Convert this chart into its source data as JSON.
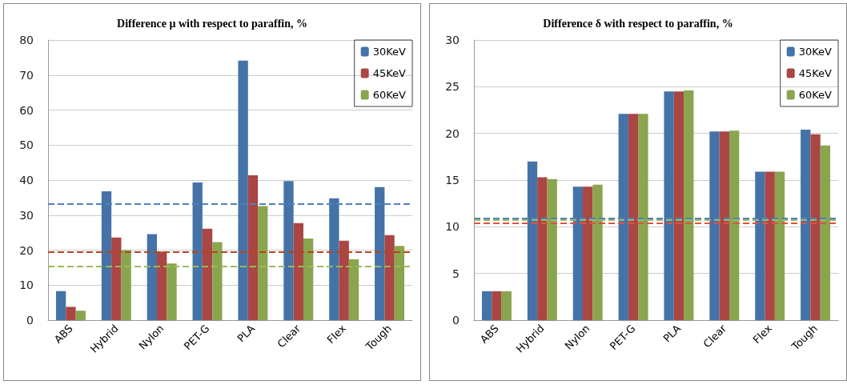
{
  "chart_data": [
    {
      "type": "bar",
      "title": "Difference μ with respect to paraffin, %",
      "categories": [
        "ABS",
        "Hybrid",
        "Nylon",
        "PET-G",
        "PLA",
        "Clear",
        "Flex",
        "Tough"
      ],
      "series": [
        {
          "name": "30KeV",
          "color": "#4572a7",
          "values": [
            8.3,
            36.8,
            24.6,
            39.3,
            74.1,
            39.7,
            34.8,
            38.0
          ]
        },
        {
          "name": "45KeV",
          "color": "#aa4643",
          "values": [
            3.8,
            23.6,
            19.6,
            26.1,
            41.4,
            27.7,
            22.7,
            24.3
          ]
        },
        {
          "name": "60KeV",
          "color": "#89a54e",
          "values": [
            2.7,
            20.0,
            16.2,
            22.3,
            32.6,
            23.3,
            17.4,
            21.2
          ]
        }
      ],
      "ylim": [
        0,
        80
      ],
      "yticks": [
        0,
        10,
        20,
        30,
        40,
        50,
        60,
        70,
        80
      ],
      "grid": "y",
      "legend": "top right",
      "ref_lines": [
        {
          "axis": "y",
          "value": 33.3,
          "color": "#4f81bd",
          "line_style": "dashed"
        },
        {
          "axis": "y",
          "value": 19.4,
          "color": "#b5451b",
          "line_style": "dashed"
        },
        {
          "axis": "y",
          "value": 15.3,
          "color": "#9bbb59",
          "line_style": "dashed"
        }
      ]
    },
    {
      "type": "bar",
      "title": "Difference δ with respect to paraffin, %",
      "categories": [
        "ABS",
        "Hybrid",
        "Nylon",
        "PET-G",
        "PLA",
        "Clear",
        "Flex",
        "Tough"
      ],
      "series": [
        {
          "name": "30KeV",
          "color": "#4572a7",
          "values": [
            3.1,
            17.0,
            14.3,
            22.1,
            24.5,
            20.2,
            15.9,
            20.4
          ]
        },
        {
          "name": "45KeV",
          "color": "#aa4643",
          "values": [
            3.1,
            15.3,
            14.3,
            22.1,
            24.5,
            20.2,
            15.9,
            19.9
          ]
        },
        {
          "name": "60KeV",
          "color": "#89a54e",
          "values": [
            3.1,
            15.1,
            14.5,
            22.1,
            24.6,
            20.3,
            15.9,
            18.7
          ]
        }
      ],
      "ylim": [
        0,
        30
      ],
      "yticks": [
        0,
        5,
        10,
        15,
        20,
        25,
        30
      ],
      "grid": "y",
      "legend": "top right",
      "ref_lines": [
        {
          "axis": "y",
          "value": 10.9,
          "color": "#4f81bd",
          "line_style": "dashed"
        },
        {
          "axis": "y",
          "value": 10.4,
          "color": "#e0504d",
          "line_style": "dashed"
        },
        {
          "axis": "y",
          "value": 10.7,
          "color": "#9bbb59",
          "line_style": "dashed"
        }
      ]
    }
  ]
}
